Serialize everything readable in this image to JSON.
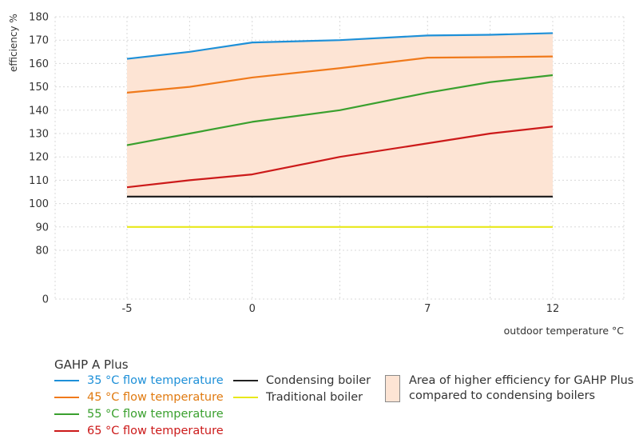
{
  "chart_data": {
    "type": "line",
    "ylabel": "efficiency %",
    "xlabel": "outdoor temperature °C",
    "x_ticks": [
      "-5",
      "0",
      "7",
      "12"
    ],
    "x": [
      -5,
      -2.5,
      0,
      3.5,
      7,
      9.5,
      12
    ],
    "y_ticks": [
      "0",
      "80",
      "90",
      "100",
      "110",
      "120",
      "130",
      "140",
      "150",
      "160",
      "170",
      "180"
    ],
    "y_axis_note": "broken axis: 0 then 80–180",
    "series": [
      {
        "name": "35 °C flow temperature",
        "color": "#1e90d8",
        "values": [
          162,
          165,
          169,
          170,
          172,
          172.3,
          173
        ]
      },
      {
        "name": "45 °C flow temperature",
        "color": "#f07a1c",
        "values": [
          147.5,
          150,
          154,
          158,
          162.5,
          162.7,
          163
        ]
      },
      {
        "name": "55 °C flow temperature",
        "color": "#3aa02e",
        "values": [
          125,
          130,
          135,
          140,
          147.5,
          152,
          155
        ]
      },
      {
        "name": "65 °C flow temperature",
        "color": "#cc1a1a",
        "values": [
          107,
          110,
          112.5,
          120,
          125.8,
          130,
          133
        ]
      },
      {
        "name": "Condensing boiler",
        "color": "#222222",
        "values": [
          103,
          103,
          103,
          103,
          103,
          103,
          103
        ]
      },
      {
        "name": "Traditional boiler",
        "color": "#e8e81a",
        "values": [
          90,
          90,
          90,
          90,
          90,
          90,
          90
        ]
      }
    ],
    "shaded_area": {
      "label": "Area of higher efficiency for GAHP Plus compared to condensing boilers",
      "label_line1": "Area of higher efficiency for GAHP Plus",
      "label_line2": "compared to condensing boilers",
      "color": "#fde4d4",
      "from_series": "Condensing boiler",
      "to_series": "35 °C flow temperature"
    }
  },
  "legend": {
    "title": "GAHP A Plus",
    "items": [
      {
        "label": "35 °C flow temperature",
        "line_color": "#1e90d8",
        "text_color": "#1e90d8"
      },
      {
        "label": "45 °C flow temperature",
        "line_color": "#f07a1c",
        "text_color": "#e07a10"
      },
      {
        "label": "55 °C flow temperature",
        "line_color": "#3aa02e",
        "text_color": "#3aa02e"
      },
      {
        "label": "65 °C flow temperature",
        "line_color": "#cc1a1a",
        "text_color": "#cc1a1a"
      },
      {
        "label": "Condensing boiler",
        "line_color": "#222222",
        "text_color": "#333333"
      },
      {
        "label": "Traditional boiler",
        "line_color": "#e8e81a",
        "text_color": "#333333"
      }
    ]
  }
}
